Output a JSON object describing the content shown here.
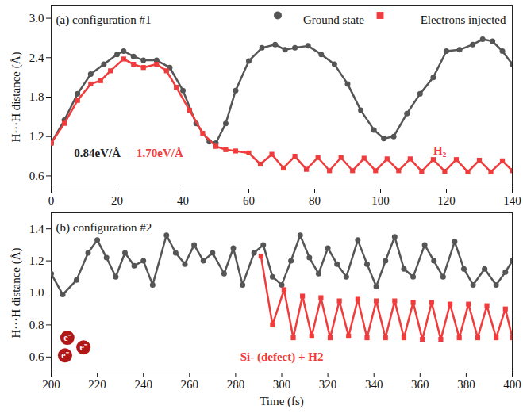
{
  "chart_data": [
    {
      "type": "line",
      "title": "(a) configuration #1",
      "y_label": "H···H distance (Å)",
      "xlim": [
        0,
        140
      ],
      "xticks": [
        0,
        20,
        40,
        60,
        80,
        100,
        120,
        140
      ],
      "ylim": [
        0.4,
        3.2
      ],
      "yticks": [
        0.6,
        1.2,
        1.8,
        2.4,
        {
          "value": 3,
          "label": "3.0"
        }
      ],
      "legend": "top-right",
      "series": [
        {
          "name": "Ground state",
          "color": "#555555",
          "marker": "circle",
          "x": [
            0,
            4,
            8,
            12,
            16,
            20,
            22,
            25,
            28,
            32,
            36,
            40,
            44,
            48,
            50,
            53,
            56,
            60,
            64,
            68,
            71,
            74,
            78,
            82,
            86,
            90,
            94,
            98,
            101,
            104,
            108,
            112,
            116,
            120,
            124,
            128,
            131,
            134,
            137,
            140
          ],
          "values": [
            1.1,
            1.45,
            1.85,
            2.15,
            2.3,
            2.45,
            2.5,
            2.42,
            2.36,
            2.36,
            2.25,
            1.9,
            1.4,
            1.12,
            1.1,
            1.4,
            1.9,
            2.35,
            2.55,
            2.6,
            2.52,
            2.55,
            2.58,
            2.45,
            2.3,
            2.0,
            1.6,
            1.3,
            1.17,
            1.2,
            1.55,
            1.85,
            2.1,
            2.5,
            2.52,
            2.6,
            2.68,
            2.65,
            2.5,
            2.3
          ]
        },
        {
          "name": "Electrons injected",
          "color": "#f03c3c",
          "marker": "square",
          "x": [
            0,
            4,
            8,
            12,
            15,
            18,
            22,
            25,
            28,
            32,
            35,
            38,
            42,
            46,
            50,
            53,
            56,
            60,
            63.5,
            67,
            70.5,
            74,
            77.5,
            81,
            84.5,
            88,
            91.5,
            95,
            98.5,
            102,
            105.5,
            109,
            112.5,
            116,
            119.5,
            123,
            126.5,
            130,
            133.5,
            137,
            140
          ],
          "values": [
            1.1,
            1.4,
            1.75,
            2.0,
            2.05,
            2.2,
            2.38,
            2.3,
            2.25,
            2.3,
            2.2,
            1.95,
            1.6,
            1.25,
            1.05,
            1.0,
            0.98,
            0.95,
            0.78,
            0.93,
            0.72,
            0.9,
            0.7,
            0.88,
            0.68,
            0.88,
            0.68,
            0.87,
            0.68,
            0.86,
            0.68,
            0.86,
            0.67,
            0.85,
            0.67,
            0.85,
            0.66,
            0.84,
            0.66,
            0.83,
            0.68
          ]
        }
      ],
      "annotations": [
        {
          "text": "H₂",
          "x": 118,
          "y": 0.98,
          "color": "#f03c3c"
        },
        {
          "text": "0.84eV/Å",
          "x": 14,
          "y": 0.95,
          "color": "#222222"
        },
        {
          "text": "1.70eV/Å",
          "x": 33,
          "y": 0.95,
          "color": "#f03c3c"
        }
      ]
    },
    {
      "type": "line",
      "title": "(b) configuration #2",
      "y_label": "H···H distance (Å)",
      "x_label": "Time (fs)",
      "xlim": [
        200,
        400
      ],
      "xticks": [
        200,
        220,
        240,
        260,
        280,
        300,
        320,
        340,
        360,
        380,
        400
      ],
      "ylim": [
        0.5,
        1.5
      ],
      "yticks": [
        0.6,
        0.8,
        {
          "value": 1,
          "label": "1.0"
        },
        1.2,
        1.4
      ],
      "series": [
        {
          "name": "Ground state",
          "color": "#555555",
          "marker": "circle",
          "x": [
            200,
            205,
            211,
            216,
            220,
            224,
            228,
            232,
            236,
            240,
            244,
            250,
            254,
            258,
            262,
            266,
            270,
            275,
            279,
            283,
            288,
            292,
            296,
            300,
            304,
            308,
            312,
            316,
            320,
            324,
            328,
            333,
            337,
            341,
            345,
            349,
            353,
            357,
            362,
            366,
            370,
            375,
            379,
            383,
            388,
            393,
            397,
            400
          ],
          "values": [
            1.12,
            0.99,
            1.08,
            1.25,
            1.33,
            1.22,
            1.1,
            1.25,
            1.17,
            1.2,
            1.05,
            1.36,
            1.25,
            1.18,
            1.3,
            1.2,
            1.25,
            1.12,
            1.28,
            1.05,
            1.25,
            1.3,
            1.1,
            1.05,
            1.2,
            1.36,
            1.22,
            1.12,
            1.28,
            1.18,
            1.1,
            1.33,
            1.18,
            1.04,
            1.2,
            1.35,
            1.15,
            1.1,
            1.3,
            1.2,
            1.1,
            1.32,
            1.15,
            1.05,
            1.15,
            1.05,
            1.13,
            1.2
          ]
        },
        {
          "name": "Electrons injected",
          "color": "#f03c3c",
          "marker": "square",
          "x": [
            291,
            296,
            301,
            305,
            309,
            313,
            317,
            321,
            325,
            329,
            333,
            337,
            341,
            345,
            349,
            353,
            357,
            361,
            365,
            369,
            373,
            377,
            381,
            385,
            389,
            393,
            397,
            400
          ],
          "values": [
            1.23,
            0.8,
            1.02,
            0.72,
            0.98,
            0.73,
            0.97,
            0.72,
            0.95,
            0.73,
            0.96,
            0.72,
            0.95,
            0.72,
            0.95,
            0.72,
            0.94,
            0.71,
            0.94,
            0.71,
            0.93,
            0.72,
            0.93,
            0.72,
            0.92,
            0.72,
            0.9,
            0.72
          ]
        }
      ],
      "annotations": [
        {
          "text": "Si- (defect) + H2",
          "x": 282,
          "y": 0.6,
          "color": "#f03c3c"
        }
      ],
      "electron_labels": [
        {
          "text": "e⁻",
          "x": 207,
          "y": 0.72
        },
        {
          "text": "e⁻",
          "x": 214,
          "y": 0.66
        },
        {
          "text": "e⁻",
          "x": 206,
          "y": 0.61
        }
      ]
    }
  ]
}
